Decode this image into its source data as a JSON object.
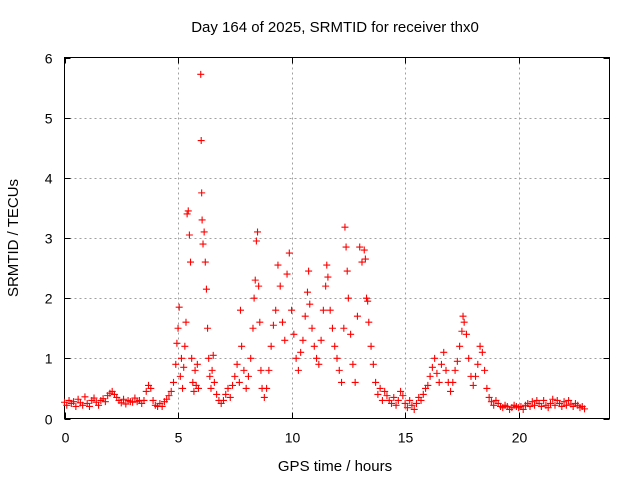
{
  "chart_data": {
    "type": "scatter",
    "title": "Day 164 of 2025, SRMTID for receiver thx0",
    "xlabel": "GPS time / hours",
    "ylabel": "SRMTID / TECUs",
    "xlim": [
      0,
      24
    ],
    "ylim": [
      0,
      6
    ],
    "xticks": [
      "0",
      "5",
      "10",
      "15",
      "20"
    ],
    "yticks": [
      "0",
      "1",
      "2",
      "3",
      "4",
      "5",
      "6"
    ],
    "grid": true,
    "marker": "plus",
    "marker_color": "#ff0000",
    "series": [
      {
        "name": "thx0",
        "color": "#ff0000",
        "points": [
          [
            0.0,
            0.27
          ],
          [
            0.1,
            0.22
          ],
          [
            0.2,
            0.3
          ],
          [
            0.3,
            0.25
          ],
          [
            0.4,
            0.28
          ],
          [
            0.5,
            0.2
          ],
          [
            0.6,
            0.32
          ],
          [
            0.7,
            0.26
          ],
          [
            0.8,
            0.22
          ],
          [
            0.9,
            0.36
          ],
          [
            1.0,
            0.25
          ],
          [
            1.1,
            0.2
          ],
          [
            1.2,
            0.3
          ],
          [
            1.3,
            0.34
          ],
          [
            1.4,
            0.27
          ],
          [
            1.5,
            0.22
          ],
          [
            1.6,
            0.3
          ],
          [
            1.7,
            0.33
          ],
          [
            1.8,
            0.28
          ],
          [
            1.9,
            0.38
          ],
          [
            2.0,
            0.42
          ],
          [
            2.1,
            0.45
          ],
          [
            2.2,
            0.4
          ],
          [
            2.3,
            0.35
          ],
          [
            2.4,
            0.3
          ],
          [
            2.5,
            0.26
          ],
          [
            2.6,
            0.32
          ],
          [
            2.7,
            0.24
          ],
          [
            2.8,
            0.3
          ],
          [
            2.9,
            0.28
          ],
          [
            3.0,
            0.27
          ],
          [
            3.1,
            0.34
          ],
          [
            3.2,
            0.28
          ],
          [
            3.3,
            0.3
          ],
          [
            3.4,
            0.25
          ],
          [
            3.5,
            0.3
          ],
          [
            3.6,
            0.45
          ],
          [
            3.7,
            0.55
          ],
          [
            3.8,
            0.5
          ],
          [
            3.9,
            0.3
          ],
          [
            4.0,
            0.22
          ],
          [
            4.1,
            0.2
          ],
          [
            4.2,
            0.25
          ],
          [
            4.3,
            0.2
          ],
          [
            4.4,
            0.28
          ],
          [
            4.5,
            0.32
          ],
          [
            4.6,
            0.38
          ],
          [
            4.7,
            0.45
          ],
          [
            4.8,
            0.6
          ],
          [
            4.9,
            0.9
          ],
          [
            4.95,
            1.25
          ],
          [
            5.0,
            1.5
          ],
          [
            5.05,
            1.85
          ],
          [
            5.1,
            0.7
          ],
          [
            5.15,
            1.0
          ],
          [
            5.2,
            0.5
          ],
          [
            5.25,
            0.85
          ],
          [
            5.3,
            1.2
          ],
          [
            5.35,
            1.6
          ],
          [
            5.4,
            3.4
          ],
          [
            5.45,
            3.45
          ],
          [
            5.5,
            3.05
          ],
          [
            5.55,
            2.6
          ],
          [
            5.6,
            1.0
          ],
          [
            5.65,
            0.6
          ],
          [
            5.7,
            0.45
          ],
          [
            5.75,
            0.8
          ],
          [
            5.8,
            0.55
          ],
          [
            5.85,
            0.9
          ],
          [
            5.9,
            0.5
          ],
          [
            6.0,
            5.72
          ],
          [
            6.02,
            4.62
          ],
          [
            6.04,
            3.75
          ],
          [
            6.06,
            3.3
          ],
          [
            6.1,
            2.9
          ],
          [
            6.15,
            3.1
          ],
          [
            6.2,
            2.6
          ],
          [
            6.25,
            2.15
          ],
          [
            6.3,
            1.5
          ],
          [
            6.35,
            1.0
          ],
          [
            6.4,
            0.7
          ],
          [
            6.45,
            0.5
          ],
          [
            6.5,
            0.8
          ],
          [
            6.55,
            1.05
          ],
          [
            6.6,
            0.6
          ],
          [
            6.7,
            0.4
          ],
          [
            6.8,
            0.3
          ],
          [
            6.9,
            0.25
          ],
          [
            7.0,
            0.3
          ],
          [
            7.1,
            0.4
          ],
          [
            7.2,
            0.5
          ],
          [
            7.3,
            0.35
          ],
          [
            7.4,
            0.55
          ],
          [
            7.5,
            0.7
          ],
          [
            7.6,
            0.9
          ],
          [
            7.7,
            0.6
          ],
          [
            7.75,
            1.8
          ],
          [
            7.8,
            1.2
          ],
          [
            7.9,
            0.8
          ],
          [
            8.0,
            0.5
          ],
          [
            8.1,
            0.7
          ],
          [
            8.2,
            1.0
          ],
          [
            8.3,
            1.5
          ],
          [
            8.35,
            2.0
          ],
          [
            8.4,
            2.3
          ],
          [
            8.45,
            2.95
          ],
          [
            8.5,
            3.1
          ],
          [
            8.55,
            2.2
          ],
          [
            8.6,
            1.6
          ],
          [
            8.65,
            0.8
          ],
          [
            8.7,
            0.5
          ],
          [
            8.8,
            0.35
          ],
          [
            8.9,
            0.5
          ],
          [
            9.0,
            0.8
          ],
          [
            9.1,
            1.2
          ],
          [
            9.2,
            1.55
          ],
          [
            9.3,
            1.8
          ],
          [
            9.4,
            2.55
          ],
          [
            9.5,
            2.2
          ],
          [
            9.6,
            1.6
          ],
          [
            9.7,
            1.3
          ],
          [
            9.8,
            2.4
          ],
          [
            9.9,
            2.75
          ],
          [
            10.0,
            1.8
          ],
          [
            10.1,
            1.4
          ],
          [
            10.2,
            1.0
          ],
          [
            10.3,
            0.8
          ],
          [
            10.4,
            1.1
          ],
          [
            10.5,
            1.3
          ],
          [
            10.6,
            1.7
          ],
          [
            10.7,
            2.1
          ],
          [
            10.75,
            2.45
          ],
          [
            10.8,
            1.9
          ],
          [
            10.9,
            1.5
          ],
          [
            11.0,
            1.2
          ],
          [
            11.1,
            1.0
          ],
          [
            11.2,
            0.9
          ],
          [
            11.3,
            1.3
          ],
          [
            11.4,
            1.8
          ],
          [
            11.5,
            2.2
          ],
          [
            11.55,
            2.55
          ],
          [
            11.6,
            2.35
          ],
          [
            11.7,
            1.8
          ],
          [
            11.8,
            1.5
          ],
          [
            11.9,
            1.2
          ],
          [
            12.0,
            1.0
          ],
          [
            12.1,
            0.8
          ],
          [
            12.2,
            0.6
          ],
          [
            12.3,
            1.5
          ],
          [
            12.35,
            3.18
          ],
          [
            12.4,
            2.85
          ],
          [
            12.45,
            2.45
          ],
          [
            12.5,
            2.0
          ],
          [
            12.6,
            1.4
          ],
          [
            12.7,
            0.9
          ],
          [
            12.8,
            0.6
          ],
          [
            12.9,
            1.7
          ],
          [
            13.0,
            2.85
          ],
          [
            13.1,
            2.6
          ],
          [
            13.2,
            2.8
          ],
          [
            13.25,
            2.65
          ],
          [
            13.3,
            2.0
          ],
          [
            13.35,
            1.95
          ],
          [
            13.4,
            1.6
          ],
          [
            13.5,
            1.2
          ],
          [
            13.6,
            0.9
          ],
          [
            13.7,
            0.6
          ],
          [
            13.8,
            0.4
          ],
          [
            13.9,
            0.5
          ],
          [
            14.0,
            0.3
          ],
          [
            14.1,
            0.45
          ],
          [
            14.2,
            0.38
          ],
          [
            14.3,
            0.3
          ],
          [
            14.4,
            0.25
          ],
          [
            14.5,
            0.35
          ],
          [
            14.6,
            0.22
          ],
          [
            14.7,
            0.3
          ],
          [
            14.8,
            0.45
          ],
          [
            14.9,
            0.38
          ],
          [
            15.0,
            0.25
          ],
          [
            15.1,
            0.18
          ],
          [
            15.2,
            0.3
          ],
          [
            15.3,
            0.22
          ],
          [
            15.4,
            0.15
          ],
          [
            15.5,
            0.25
          ],
          [
            15.6,
            0.35
          ],
          [
            15.7,
            0.3
          ],
          [
            15.8,
            0.4
          ],
          [
            15.9,
            0.5
          ],
          [
            16.0,
            0.55
          ],
          [
            16.1,
            0.7
          ],
          [
            16.2,
            0.85
          ],
          [
            16.3,
            1.0
          ],
          [
            16.4,
            0.75
          ],
          [
            16.5,
            0.6
          ],
          [
            16.6,
            0.9
          ],
          [
            16.7,
            1.1
          ],
          [
            16.8,
            0.8
          ],
          [
            16.9,
            0.6
          ],
          [
            17.0,
            0.45
          ],
          [
            17.1,
            0.6
          ],
          [
            17.2,
            0.8
          ],
          [
            17.3,
            0.95
          ],
          [
            17.4,
            1.2
          ],
          [
            17.5,
            1.45
          ],
          [
            17.55,
            1.7
          ],
          [
            17.6,
            1.6
          ],
          [
            17.7,
            1.4
          ],
          [
            17.8,
            1.0
          ],
          [
            17.9,
            0.7
          ],
          [
            18.0,
            0.55
          ],
          [
            18.1,
            0.7
          ],
          [
            18.2,
            0.9
          ],
          [
            18.3,
            1.2
          ],
          [
            18.4,
            1.1
          ],
          [
            18.5,
            0.8
          ],
          [
            18.6,
            0.5
          ],
          [
            18.7,
            0.35
          ],
          [
            18.8,
            0.28
          ],
          [
            18.9,
            0.22
          ],
          [
            19.0,
            0.3
          ],
          [
            19.1,
            0.25
          ],
          [
            19.2,
            0.2
          ],
          [
            19.3,
            0.18
          ],
          [
            19.4,
            0.22
          ],
          [
            19.5,
            0.2
          ],
          [
            19.6,
            0.15
          ],
          [
            19.7,
            0.18
          ],
          [
            19.8,
            0.22
          ],
          [
            19.9,
            0.2
          ],
          [
            20.0,
            0.18
          ],
          [
            20.1,
            0.2
          ],
          [
            20.2,
            0.15
          ],
          [
            20.3,
            0.22
          ],
          [
            20.4,
            0.25
          ],
          [
            20.5,
            0.2
          ],
          [
            20.6,
            0.28
          ],
          [
            20.7,
            0.22
          ],
          [
            20.8,
            0.3
          ],
          [
            20.9,
            0.25
          ],
          [
            21.0,
            0.2
          ],
          [
            21.1,
            0.3
          ],
          [
            21.2,
            0.22
          ],
          [
            21.3,
            0.18
          ],
          [
            21.4,
            0.25
          ],
          [
            21.5,
            0.32
          ],
          [
            21.6,
            0.22
          ],
          [
            21.7,
            0.3
          ],
          [
            21.8,
            0.25
          ],
          [
            21.9,
            0.2
          ],
          [
            22.0,
            0.28
          ],
          [
            22.1,
            0.22
          ],
          [
            22.2,
            0.3
          ],
          [
            22.3,
            0.24
          ],
          [
            22.4,
            0.2
          ],
          [
            22.5,
            0.25
          ],
          [
            22.6,
            0.22
          ],
          [
            22.7,
            0.18
          ],
          [
            22.8,
            0.2
          ],
          [
            22.9,
            0.16
          ]
        ]
      }
    ]
  }
}
